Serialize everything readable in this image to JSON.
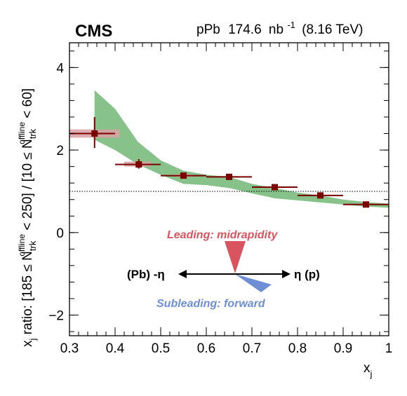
{
  "header": {
    "experiment": "CMS",
    "system": "pPb",
    "luminosity_value": "174.6",
    "luminosity_unit": "nb",
    "luminosity_exp": "-1",
    "energy": "(8.16 TeV)"
  },
  "legend_diagram": {
    "leading_label": "Leading: midrapidity",
    "subleading_label": "Subleading: forward",
    "left_label": "(Pb) -η",
    "right_label": "η (p)",
    "leading_color": "#d9545e",
    "subleading_color": "#6e8fd6"
  },
  "chart_data": {
    "type": "scatter",
    "xlabel": "x",
    "xlabel_sub": "j",
    "ylabel_parts": {
      "xj": "x",
      "xj_sub": "j",
      "ratio_word": " ratio: [185 ≤ N",
      "n_sub": "trk",
      "n_sup": "offline",
      "mid": " < 250] / [10 ≤ N",
      "end": " < 60]"
    },
    "xlim": [
      0.3,
      1.0
    ],
    "ylim": [
      -2.5,
      4.6
    ],
    "x_ticks": [
      "0.3",
      "0.4",
      "0.5",
      "0.6",
      "0.7",
      "0.8",
      "0.9",
      "1"
    ],
    "y_ticks": [
      "−2",
      "0",
      "2",
      "4"
    ],
    "reference_line_y": 1.0,
    "series": [
      {
        "kind": "data",
        "marker_color": "#7a0000",
        "sys_box_color": "#d9a0a4",
        "points": [
          {
            "x": 0.355,
            "y": 2.4,
            "xlo": 0.3,
            "xhi": 0.4,
            "ylo": 2.05,
            "yhi": 2.8,
            "sys_lo": 2.3,
            "sys_hi": 2.5,
            "box_x": [
              0.3,
              0.41
            ]
          },
          {
            "x": 0.452,
            "y": 1.65,
            "xlo": 0.4,
            "xhi": 0.5,
            "ylo": 1.55,
            "yhi": 1.78,
            "sys_lo": 1.6,
            "sys_hi": 1.72,
            "box_x": [
              0.42,
              0.48
            ]
          },
          {
            "x": 0.55,
            "y": 1.38,
            "xlo": 0.5,
            "xhi": 0.6,
            "ylo": 1.33,
            "yhi": 1.43,
            "sys_lo": 1.35,
            "sys_hi": 1.41,
            "box_x": [
              0.53,
              0.57
            ]
          },
          {
            "x": 0.65,
            "y": 1.35,
            "xlo": 0.6,
            "xhi": 0.7,
            "ylo": 1.31,
            "yhi": 1.39,
            "sys_lo": 1.33,
            "sys_hi": 1.37,
            "box_x": [
              0.63,
              0.67
            ]
          },
          {
            "x": 0.75,
            "y": 1.1,
            "xlo": 0.7,
            "xhi": 0.8,
            "ylo": 1.06,
            "yhi": 1.14,
            "sys_lo": 1.08,
            "sys_hi": 1.12,
            "box_x": [
              0.73,
              0.77
            ]
          },
          {
            "x": 0.85,
            "y": 0.9,
            "xlo": 0.8,
            "xhi": 0.9,
            "ylo": 0.87,
            "yhi": 0.93,
            "sys_lo": 0.88,
            "sys_hi": 0.92,
            "box_x": [
              0.83,
              0.87
            ]
          },
          {
            "x": 0.95,
            "y": 0.68,
            "xlo": 0.9,
            "xhi": 1.0,
            "ylo": 0.65,
            "yhi": 0.71,
            "sys_lo": 0.66,
            "sys_hi": 0.7,
            "box_x": [
              0.93,
              0.97
            ]
          }
        ]
      },
      {
        "kind": "band",
        "color": "#86c28a",
        "upper": [
          [
            0.355,
            3.45
          ],
          [
            0.4,
            3.0
          ],
          [
            0.45,
            2.2
          ],
          [
            0.5,
            1.75
          ],
          [
            0.55,
            1.5
          ],
          [
            0.6,
            1.4
          ],
          [
            0.65,
            1.35
          ],
          [
            0.7,
            1.18
          ],
          [
            0.75,
            1.08
          ],
          [
            0.8,
            0.97
          ],
          [
            0.85,
            0.9
          ],
          [
            0.9,
            0.8
          ],
          [
            0.95,
            0.74
          ],
          [
            1.0,
            0.7
          ]
        ],
        "lower": [
          [
            0.355,
            2.25
          ],
          [
            0.4,
            2.0
          ],
          [
            0.45,
            1.65
          ],
          [
            0.5,
            1.4
          ],
          [
            0.55,
            1.18
          ],
          [
            0.6,
            1.15
          ],
          [
            0.65,
            1.08
          ],
          [
            0.7,
            0.95
          ],
          [
            0.75,
            0.83
          ],
          [
            0.8,
            0.78
          ],
          [
            0.85,
            0.73
          ],
          [
            0.9,
            0.68
          ],
          [
            0.95,
            0.63
          ],
          [
            1.0,
            0.6
          ]
        ]
      }
    ]
  }
}
